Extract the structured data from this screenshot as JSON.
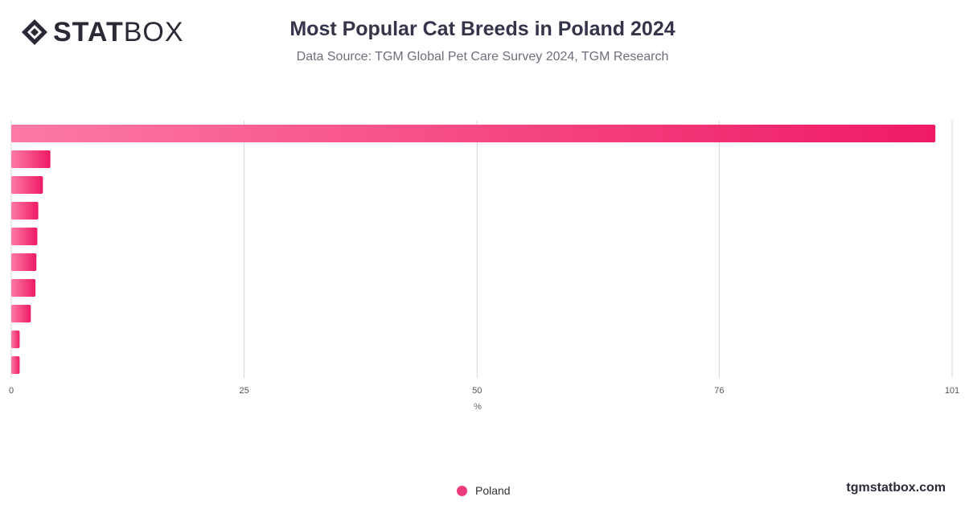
{
  "logo": {
    "bold": "STAT",
    "light": "BOX"
  },
  "header": {
    "title": "Most Popular Cat Breeds in Poland 2024",
    "subtitle": "Data Source: TGM Global Pet Care Survey 2024, TGM Research"
  },
  "colors": {
    "bar_start": "#fc7aa5",
    "bar_end": "#ef1a66",
    "grid": "#d6d6d6",
    "legend": "#ec3c7d"
  },
  "chart_data": {
    "type": "bar",
    "orientation": "horizontal",
    "categories": [
      "",
      "",
      "",
      "",
      "",
      "",
      "",
      "",
      "",
      ""
    ],
    "series": [
      {
        "name": "Poland",
        "values": [
          99.2,
          4.2,
          3.4,
          2.9,
          2.8,
          2.7,
          2.6,
          2.1,
          0.9,
          0.9
        ]
      }
    ],
    "xlabel": "%",
    "xticks": [
      0,
      25,
      50,
      76,
      101
    ],
    "xlim": [
      0,
      101
    ],
    "grid": true,
    "legend": "bottom-center"
  },
  "legend": {
    "label": "Poland"
  },
  "footer": {
    "brand": "tgmstatbox.com"
  }
}
